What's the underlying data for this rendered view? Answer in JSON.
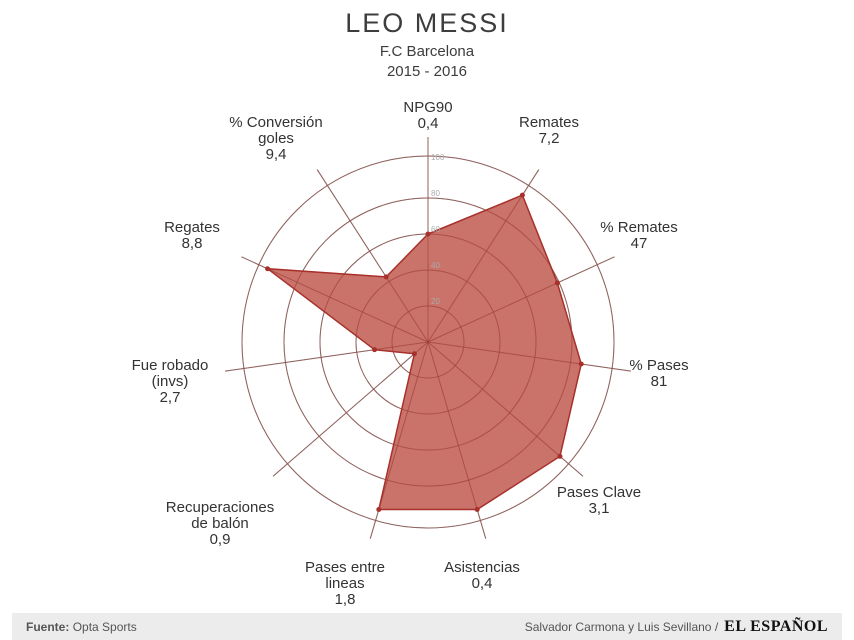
{
  "header": {
    "title": "LEO MESSI",
    "team": "F.C Barcelona",
    "season": "2015 - 2016"
  },
  "footer": {
    "source_label": "Fuente:",
    "source_value": "Opta Sports",
    "authors": "Salvador Carmona y Luis Sevillano /",
    "brand": "EL ESPAÑOL"
  },
  "colors": {
    "fill": "#c4645a",
    "stroke": "#a8302a",
    "grid": "#888888",
    "text": "#333333"
  },
  "chart_data": {
    "type": "radar",
    "title": "LEO MESSI",
    "subtitle": "F.C Barcelona 2015 - 2016",
    "radial_ticks": [
      20,
      40,
      60,
      80,
      100
    ],
    "rlim": [
      0,
      100
    ],
    "grid": true,
    "axes": [
      {
        "label": "NPG90",
        "value_label": "0,4",
        "percentile": 60
      },
      {
        "label": "Remates",
        "value_label": "7,2",
        "percentile": 97
      },
      {
        "label": "% Remates",
        "value_label": "47",
        "percentile": 79
      },
      {
        "label": "% Pases",
        "value_label": "81",
        "percentile": 86
      },
      {
        "label": "Pases Clave",
        "value_label": "3,1",
        "percentile": 97
      },
      {
        "label": "Asistencias",
        "value_label": "0,4",
        "percentile": 97
      },
      {
        "label": "Pases entre lineas",
        "value_label": "1,8",
        "percentile": 97
      },
      {
        "label": "Recuperaciones de balón",
        "value_label": "0,9",
        "percentile": 10
      },
      {
        "label": "Fue robado (invs)",
        "value_label": "2,7",
        "percentile": 30
      },
      {
        "label": "Regates",
        "value_label": "8,8",
        "percentile": 98
      },
      {
        "label": "% Conversión goles",
        "value_label": "9,4",
        "percentile": 43
      }
    ]
  },
  "labels": [
    {
      "lines": [
        "NPG90"
      ],
      "value": "0,4"
    },
    {
      "lines": [
        "Remates"
      ],
      "value": "7,2"
    },
    {
      "lines": [
        "% Remates"
      ],
      "value": "47"
    },
    {
      "lines": [
        "% Pases"
      ],
      "value": "81"
    },
    {
      "lines": [
        "Pases Clave"
      ],
      "value": "3,1"
    },
    {
      "lines": [
        "Asistencias"
      ],
      "value": "0,4"
    },
    {
      "lines": [
        "Pases entre",
        "lineas"
      ],
      "value": "1,8"
    },
    {
      "lines": [
        "Recuperaciones",
        "de balón"
      ],
      "value": "0,9"
    },
    {
      "lines": [
        "Fue robado",
        "(invs)"
      ],
      "value": "2,7"
    },
    {
      "lines": [
        "Regates"
      ],
      "value": "8,8"
    },
    {
      "lines": [
        "% Conversión",
        "goles"
      ],
      "value": "9,4"
    }
  ]
}
